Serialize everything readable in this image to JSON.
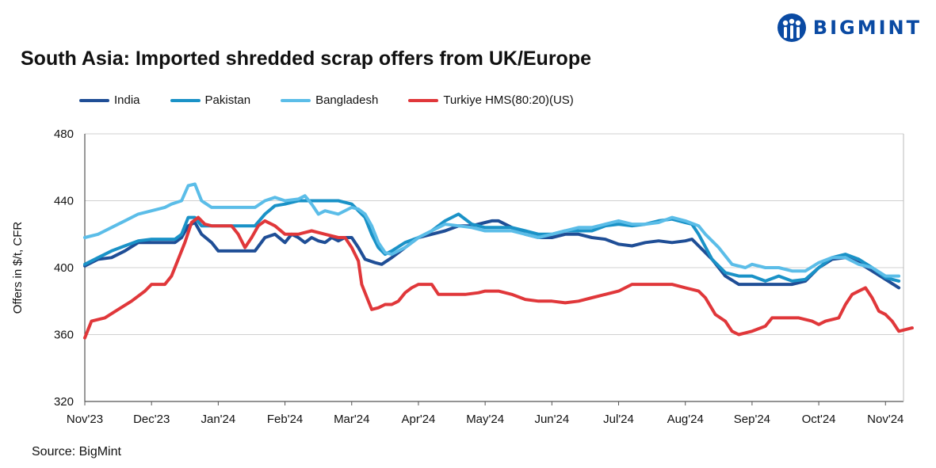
{
  "brand": {
    "name": "BIGMINT",
    "color": "#0a4aa3"
  },
  "title": "South Asia: Imported shredded scrap offers from UK/Europe",
  "source": "Source: BigMint",
  "chart_data": {
    "type": "line",
    "title": "South Asia: Imported shredded scrap offers from UK/Europe",
    "ylabel": "Offers in $/t, CFR",
    "xlabel": "",
    "ylim": [
      320,
      480
    ],
    "yticks": [
      "480",
      "440",
      "400",
      "360",
      "320"
    ],
    "x_tick_labels": [
      "Nov'23",
      "Dec'23",
      "Jan'24",
      "Feb'24",
      "Mar'24",
      "Apr'24",
      "May'24",
      "Jun'24",
      "Jul'24",
      "Aug'24",
      "Sep'24",
      "Oct'24",
      "Nov'24"
    ],
    "grid": "horizontal",
    "legend_position": "top",
    "x_format": "month index (0 = Nov'23, 12 = Nov'24)",
    "series": [
      {
        "name": "India",
        "color": "#1f4e96",
        "points": [
          [
            0,
            401
          ],
          [
            0.2,
            405
          ],
          [
            0.4,
            406
          ],
          [
            0.6,
            410
          ],
          [
            0.8,
            415
          ],
          [
            1.0,
            415
          ],
          [
            1.2,
            415
          ],
          [
            1.35,
            415
          ],
          [
            1.45,
            418
          ],
          [
            1.55,
            425
          ],
          [
            1.65,
            427
          ],
          [
            1.75,
            420
          ],
          [
            1.9,
            415
          ],
          [
            2.0,
            410
          ],
          [
            2.2,
            410
          ],
          [
            2.4,
            410
          ],
          [
            2.55,
            410
          ],
          [
            2.7,
            418
          ],
          [
            2.85,
            420
          ],
          [
            3.0,
            415
          ],
          [
            3.1,
            420
          ],
          [
            3.2,
            418
          ],
          [
            3.3,
            415
          ],
          [
            3.4,
            418
          ],
          [
            3.5,
            416
          ],
          [
            3.6,
            415
          ],
          [
            3.7,
            418
          ],
          [
            3.8,
            416
          ],
          [
            3.9,
            418
          ],
          [
            4.0,
            418
          ],
          [
            4.1,
            412
          ],
          [
            4.2,
            405
          ],
          [
            4.35,
            403
          ],
          [
            4.45,
            402
          ],
          [
            4.6,
            406
          ],
          [
            4.8,
            412
          ],
          [
            5.0,
            418
          ],
          [
            5.2,
            420
          ],
          [
            5.4,
            422
          ],
          [
            5.6,
            425
          ],
          [
            5.8,
            425
          ],
          [
            6.0,
            427
          ],
          [
            6.1,
            428
          ],
          [
            6.2,
            428
          ],
          [
            6.4,
            424
          ],
          [
            6.6,
            420
          ],
          [
            6.8,
            418
          ],
          [
            7.0,
            418
          ],
          [
            7.2,
            420
          ],
          [
            7.4,
            420
          ],
          [
            7.6,
            418
          ],
          [
            7.8,
            417
          ],
          [
            8.0,
            414
          ],
          [
            8.2,
            413
          ],
          [
            8.4,
            415
          ],
          [
            8.6,
            416
          ],
          [
            8.8,
            415
          ],
          [
            9.0,
            416
          ],
          [
            9.1,
            417
          ],
          [
            9.2,
            413
          ],
          [
            9.4,
            405
          ],
          [
            9.6,
            395
          ],
          [
            9.8,
            390
          ],
          [
            10.0,
            390
          ],
          [
            10.2,
            390
          ],
          [
            10.4,
            390
          ],
          [
            10.6,
            390
          ],
          [
            10.8,
            392
          ],
          [
            11.0,
            400
          ],
          [
            11.2,
            405
          ],
          [
            11.4,
            406
          ],
          [
            11.6,
            403
          ],
          [
            11.8,
            398
          ],
          [
            12.0,
            393
          ],
          [
            12.2,
            388
          ]
        ]
      },
      {
        "name": "Pakistan",
        "color": "#1a92c7",
        "points": [
          [
            0,
            402
          ],
          [
            0.2,
            406
          ],
          [
            0.4,
            410
          ],
          [
            0.6,
            413
          ],
          [
            0.8,
            416
          ],
          [
            1.0,
            417
          ],
          [
            1.2,
            417
          ],
          [
            1.35,
            417
          ],
          [
            1.45,
            420
          ],
          [
            1.55,
            430
          ],
          [
            1.65,
            430
          ],
          [
            1.75,
            425
          ],
          [
            1.9,
            425
          ],
          [
            2.0,
            425
          ],
          [
            2.2,
            425
          ],
          [
            2.4,
            425
          ],
          [
            2.55,
            425
          ],
          [
            2.7,
            432
          ],
          [
            2.85,
            437
          ],
          [
            3.0,
            438
          ],
          [
            3.2,
            440
          ],
          [
            3.4,
            440
          ],
          [
            3.6,
            440
          ],
          [
            3.8,
            440
          ],
          [
            4.0,
            438
          ],
          [
            4.2,
            430
          ],
          [
            4.3,
            420
          ],
          [
            4.4,
            412
          ],
          [
            4.5,
            408
          ],
          [
            4.6,
            410
          ],
          [
            4.8,
            415
          ],
          [
            5.0,
            418
          ],
          [
            5.2,
            422
          ],
          [
            5.4,
            428
          ],
          [
            5.6,
            432
          ],
          [
            5.8,
            426
          ],
          [
            6.0,
            424
          ],
          [
            6.2,
            424
          ],
          [
            6.4,
            424
          ],
          [
            6.6,
            422
          ],
          [
            6.8,
            420
          ],
          [
            7.0,
            420
          ],
          [
            7.2,
            422
          ],
          [
            7.4,
            422
          ],
          [
            7.6,
            422
          ],
          [
            7.8,
            425
          ],
          [
            8.0,
            426
          ],
          [
            8.2,
            425
          ],
          [
            8.4,
            426
          ],
          [
            8.6,
            428
          ],
          [
            8.8,
            429
          ],
          [
            9.0,
            427
          ],
          [
            9.1,
            426
          ],
          [
            9.2,
            420
          ],
          [
            9.4,
            405
          ],
          [
            9.6,
            397
          ],
          [
            9.8,
            395
          ],
          [
            10.0,
            395
          ],
          [
            10.2,
            392
          ],
          [
            10.4,
            395
          ],
          [
            10.6,
            392
          ],
          [
            10.8,
            393
          ],
          [
            11.0,
            400
          ],
          [
            11.2,
            406
          ],
          [
            11.4,
            408
          ],
          [
            11.6,
            405
          ],
          [
            11.8,
            400
          ],
          [
            12.0,
            394
          ],
          [
            12.2,
            392
          ]
        ]
      },
      {
        "name": "Bangladesh",
        "color": "#5bbde8",
        "points": [
          [
            0,
            418
          ],
          [
            0.2,
            420
          ],
          [
            0.4,
            424
          ],
          [
            0.6,
            428
          ],
          [
            0.8,
            432
          ],
          [
            1.0,
            434
          ],
          [
            1.2,
            436
          ],
          [
            1.3,
            438
          ],
          [
            1.45,
            440
          ],
          [
            1.55,
            449
          ],
          [
            1.65,
            450
          ],
          [
            1.75,
            440
          ],
          [
            1.9,
            436
          ],
          [
            2.0,
            436
          ],
          [
            2.2,
            436
          ],
          [
            2.4,
            436
          ],
          [
            2.55,
            436
          ],
          [
            2.7,
            440
          ],
          [
            2.85,
            442
          ],
          [
            3.0,
            440
          ],
          [
            3.2,
            441
          ],
          [
            3.3,
            443
          ],
          [
            3.4,
            438
          ],
          [
            3.5,
            432
          ],
          [
            3.6,
            434
          ],
          [
            3.8,
            432
          ],
          [
            4.0,
            436
          ],
          [
            4.1,
            435
          ],
          [
            4.2,
            432
          ],
          [
            4.3,
            425
          ],
          [
            4.4,
            415
          ],
          [
            4.5,
            409
          ],
          [
            4.6,
            408
          ],
          [
            4.8,
            412
          ],
          [
            5.0,
            418
          ],
          [
            5.2,
            422
          ],
          [
            5.4,
            426
          ],
          [
            5.6,
            425
          ],
          [
            5.8,
            424
          ],
          [
            6.0,
            422
          ],
          [
            6.2,
            422
          ],
          [
            6.4,
            422
          ],
          [
            6.6,
            420
          ],
          [
            6.8,
            418
          ],
          [
            7.0,
            420
          ],
          [
            7.2,
            422
          ],
          [
            7.4,
            424
          ],
          [
            7.6,
            424
          ],
          [
            7.8,
            426
          ],
          [
            8.0,
            428
          ],
          [
            8.2,
            426
          ],
          [
            8.4,
            426
          ],
          [
            8.6,
            427
          ],
          [
            8.8,
            430
          ],
          [
            9.0,
            428
          ],
          [
            9.2,
            425
          ],
          [
            9.3,
            420
          ],
          [
            9.5,
            412
          ],
          [
            9.7,
            402
          ],
          [
            9.9,
            400
          ],
          [
            10.0,
            402
          ],
          [
            10.2,
            400
          ],
          [
            10.4,
            400
          ],
          [
            10.6,
            398
          ],
          [
            10.8,
            398
          ],
          [
            11.0,
            403
          ],
          [
            11.2,
            406
          ],
          [
            11.4,
            406
          ],
          [
            11.6,
            402
          ],
          [
            11.8,
            400
          ],
          [
            12.0,
            395
          ],
          [
            12.2,
            395
          ]
        ]
      },
      {
        "name": "Turkiye HMS(80:20)(US)",
        "color": "#e0373a",
        "points": [
          [
            0,
            358
          ],
          [
            0.1,
            368
          ],
          [
            0.3,
            370
          ],
          [
            0.5,
            375
          ],
          [
            0.7,
            380
          ],
          [
            0.9,
            386
          ],
          [
            1.0,
            390
          ],
          [
            1.2,
            390
          ],
          [
            1.3,
            395
          ],
          [
            1.4,
            405
          ],
          [
            1.5,
            415
          ],
          [
            1.6,
            427
          ],
          [
            1.7,
            430
          ],
          [
            1.8,
            426
          ],
          [
            1.9,
            425
          ],
          [
            2.0,
            425
          ],
          [
            2.2,
            425
          ],
          [
            2.3,
            420
          ],
          [
            2.4,
            412
          ],
          [
            2.5,
            418
          ],
          [
            2.6,
            425
          ],
          [
            2.7,
            428
          ],
          [
            2.85,
            425
          ],
          [
            3.0,
            420
          ],
          [
            3.2,
            420
          ],
          [
            3.4,
            422
          ],
          [
            3.6,
            420
          ],
          [
            3.8,
            418
          ],
          [
            3.9,
            418
          ],
          [
            4.0,
            412
          ],
          [
            4.1,
            404
          ],
          [
            4.15,
            390
          ],
          [
            4.25,
            380
          ],
          [
            4.3,
            375
          ],
          [
            4.4,
            376
          ],
          [
            4.5,
            378
          ],
          [
            4.6,
            378
          ],
          [
            4.7,
            380
          ],
          [
            4.8,
            385
          ],
          [
            4.9,
            388
          ],
          [
            5.0,
            390
          ],
          [
            5.2,
            390
          ],
          [
            5.3,
            384
          ],
          [
            5.5,
            384
          ],
          [
            5.7,
            384
          ],
          [
            5.9,
            385
          ],
          [
            6.0,
            386
          ],
          [
            6.2,
            386
          ],
          [
            6.4,
            384
          ],
          [
            6.6,
            381
          ],
          [
            6.8,
            380
          ],
          [
            7.0,
            380
          ],
          [
            7.2,
            379
          ],
          [
            7.4,
            380
          ],
          [
            7.6,
            382
          ],
          [
            7.8,
            384
          ],
          [
            8.0,
            386
          ],
          [
            8.2,
            390
          ],
          [
            8.4,
            390
          ],
          [
            8.6,
            390
          ],
          [
            8.8,
            390
          ],
          [
            9.0,
            388
          ],
          [
            9.2,
            386
          ],
          [
            9.3,
            382
          ],
          [
            9.45,
            372
          ],
          [
            9.6,
            368
          ],
          [
            9.7,
            362
          ],
          [
            9.8,
            360
          ],
          [
            10.0,
            362
          ],
          [
            10.2,
            365
          ],
          [
            10.3,
            370
          ],
          [
            10.5,
            370
          ],
          [
            10.7,
            370
          ],
          [
            10.9,
            368
          ],
          [
            11.0,
            366
          ],
          [
            11.1,
            368
          ],
          [
            11.3,
            370
          ],
          [
            11.4,
            378
          ],
          [
            11.5,
            384
          ],
          [
            11.6,
            386
          ],
          [
            11.7,
            388
          ],
          [
            11.8,
            382
          ],
          [
            11.9,
            374
          ],
          [
            12.0,
            372
          ],
          [
            12.1,
            368
          ],
          [
            12.2,
            362
          ],
          [
            12.4,
            364
          ]
        ]
      }
    ]
  }
}
